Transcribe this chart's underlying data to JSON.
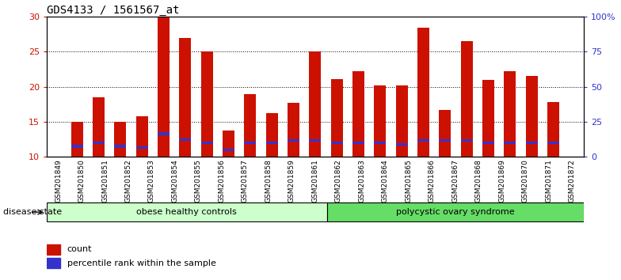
{
  "title": "GDS4133 / 1561567_at",
  "samples": [
    "GSM201849",
    "GSM201850",
    "GSM201851",
    "GSM201852",
    "GSM201853",
    "GSM201854",
    "GSM201855",
    "GSM201856",
    "GSM201857",
    "GSM201858",
    "GSM201859",
    "GSM201861",
    "GSM201862",
    "GSM201863",
    "GSM201864",
    "GSM201865",
    "GSM201866",
    "GSM201867",
    "GSM201868",
    "GSM201869",
    "GSM201870",
    "GSM201871",
    "GSM201872"
  ],
  "count_values": [
    15.0,
    18.5,
    15.0,
    15.8,
    30.0,
    27.0,
    25.0,
    13.7,
    19.0,
    16.2,
    17.7,
    25.0,
    21.1,
    22.2,
    20.2,
    20.2,
    28.5,
    16.7,
    26.5,
    21.0,
    22.2,
    21.5,
    17.8
  ],
  "percentile_values": [
    11.5,
    12.0,
    11.5,
    11.3,
    13.3,
    12.5,
    12.0,
    11.0,
    12.0,
    12.0,
    12.3,
    12.3,
    12.0,
    12.0,
    12.0,
    11.8,
    12.3,
    12.3,
    12.3,
    12.0,
    12.0,
    12.0,
    12.0
  ],
  "bar_color": "#CC1100",
  "blue_color": "#3333CC",
  "ylim_left": [
    10,
    30
  ],
  "ylim_right": [
    0,
    100
  ],
  "yticks_left": [
    10,
    15,
    20,
    25,
    30
  ],
  "yticks_right": [
    0,
    25,
    50,
    75,
    100
  ],
  "ytick_labels_right": [
    "0",
    "25",
    "50",
    "75",
    "100%"
  ],
  "group1_label": "obese healthy controls",
  "group2_label": "polycystic ovary syndrome",
  "group1_count": 12,
  "group2_count": 11,
  "disease_state_label": "disease state",
  "legend_count_label": "count",
  "legend_percentile_label": "percentile rank within the sample",
  "group1_color": "#CCFFCC",
  "group2_color": "#66DD66",
  "bar_width": 0.55,
  "title_fontsize": 10,
  "tick_label_fontsize": 6.5,
  "axis_label_fontsize": 8,
  "left_tick_color": "#CC1100",
  "right_tick_color": "#3333CC"
}
